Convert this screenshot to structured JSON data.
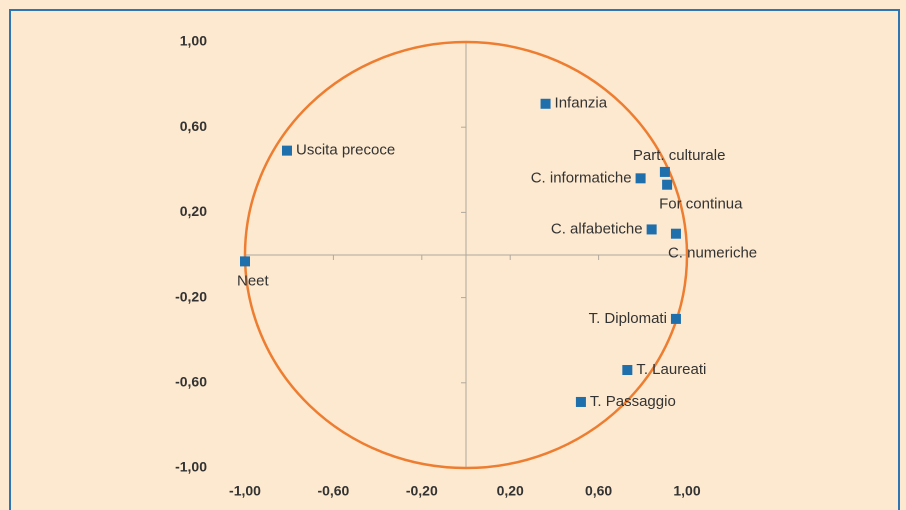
{
  "chart_data": {
    "type": "scatter",
    "labels": [
      "Infanzia",
      "Uscita precoce",
      "Part. culturale",
      "C. informatiche",
      "For continua",
      "C. alfabetiche",
      "C. numeriche",
      "Neet",
      "T. Diplomati",
      "T. Laureati",
      "T. Passaggio"
    ],
    "x": [
      0.36,
      -0.81,
      0.9,
      0.79,
      0.91,
      0.84,
      0.95,
      -1.0,
      0.95,
      0.73,
      0.52
    ],
    "values": [
      0.71,
      0.49,
      0.39,
      0.36,
      0.33,
      0.12,
      0.1,
      -0.03,
      -0.3,
      -0.54,
      -0.69
    ],
    "color": "#1f6fad",
    "circle_color": "#ed7d31",
    "xlim": [
      -1,
      1
    ],
    "ylim": [
      -1,
      1
    ],
    "xticks": [
      {
        "value": -1,
        "label": "-1,00"
      },
      {
        "value": -0.6,
        "label": "-0,60"
      },
      {
        "value": -0.2,
        "label": "-0,20"
      },
      {
        "value": 0.2,
        "label": "0,20"
      },
      {
        "value": 0.6,
        "label": "0,60"
      },
      {
        "value": 1,
        "label": "1,00"
      }
    ],
    "yticks": [
      {
        "value": -1,
        "label": "-1,00"
      },
      {
        "value": -0.6,
        "label": "-0,60"
      },
      {
        "value": -0.2,
        "label": "-0,20"
      },
      {
        "value": 0.2,
        "label": "0,20"
      },
      {
        "value": 0.6,
        "label": "0,60"
      },
      {
        "value": 1,
        "label": "1,00"
      }
    ]
  }
}
